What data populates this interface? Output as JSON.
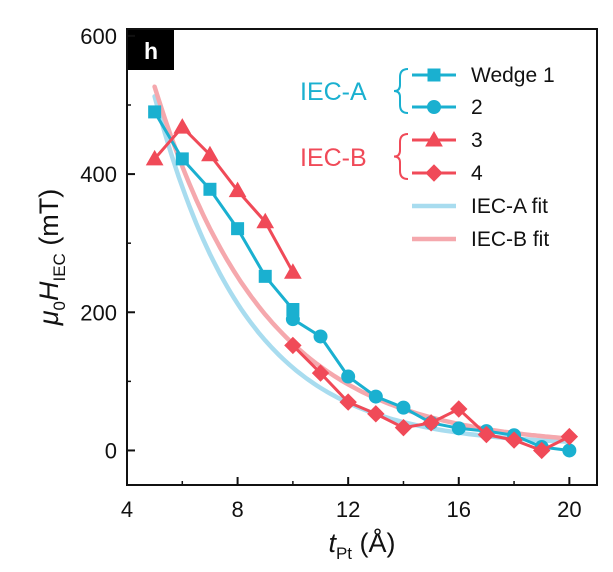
{
  "panel_label": "h",
  "colors": {
    "wedge1": "#1ab0d0",
    "wedge2": "#1ab0d0",
    "wedge3": "#f04a58",
    "wedge4": "#f04a58",
    "fitA": "#a8dcef",
    "fitB": "#f5a8ad",
    "axis": "#111111"
  },
  "chart_data": {
    "type": "line",
    "xlabel": {
      "main": "t",
      "sub": "Pt",
      "unit": " (Å)"
    },
    "ylabel": {
      "pre": "μ",
      "pre_sub": "0",
      "main": "H",
      "sub": "IEC",
      "unit": " (mT)"
    },
    "xlim": [
      4,
      21
    ],
    "ylim": [
      -50,
      610
    ],
    "xticks": [
      4,
      8,
      12,
      16,
      20
    ],
    "yticks": [
      0,
      200,
      400,
      600
    ],
    "groups": [
      {
        "name": "IEC-A",
        "color": "#1ab0d0"
      },
      {
        "name": "IEC-B",
        "color": "#f04a58"
      }
    ],
    "series": [
      {
        "name": "Wedge 1",
        "marker": "square",
        "group": "IEC-A",
        "x": [
          5,
          6,
          7,
          8,
          9,
          10
        ],
        "y": [
          490,
          422,
          378,
          321,
          252,
          204
        ]
      },
      {
        "name": "2",
        "marker": "circle",
        "group": "IEC-A",
        "x": [
          10,
          11,
          12,
          13,
          14,
          15,
          16,
          17,
          18,
          19,
          20
        ],
        "y": [
          190,
          165,
          107,
          78,
          62,
          40,
          32,
          28,
          22,
          5,
          0
        ]
      },
      {
        "name": "3",
        "marker": "triangle",
        "group": "IEC-B",
        "x": [
          5,
          6,
          7,
          8,
          9,
          10
        ],
        "y": [
          422,
          468,
          428,
          376,
          331,
          258
        ]
      },
      {
        "name": "4",
        "marker": "diamond",
        "group": "IEC-B",
        "x": [
          10,
          11,
          12,
          13,
          14,
          15,
          16,
          17,
          18,
          19,
          20
        ],
        "y": [
          152,
          112,
          70,
          53,
          33,
          40,
          60,
          23,
          15,
          0,
          20
        ]
      }
    ],
    "fits": [
      {
        "name": "IEC-A fit",
        "x_range": [
          5,
          20
        ],
        "A": 2265,
        "k": 0.3,
        "c": 7
      },
      {
        "name": "IEC-B fit",
        "x_range": [
          5,
          20
        ],
        "A": 1820,
        "k": 0.25,
        "c": 5
      }
    ]
  }
}
